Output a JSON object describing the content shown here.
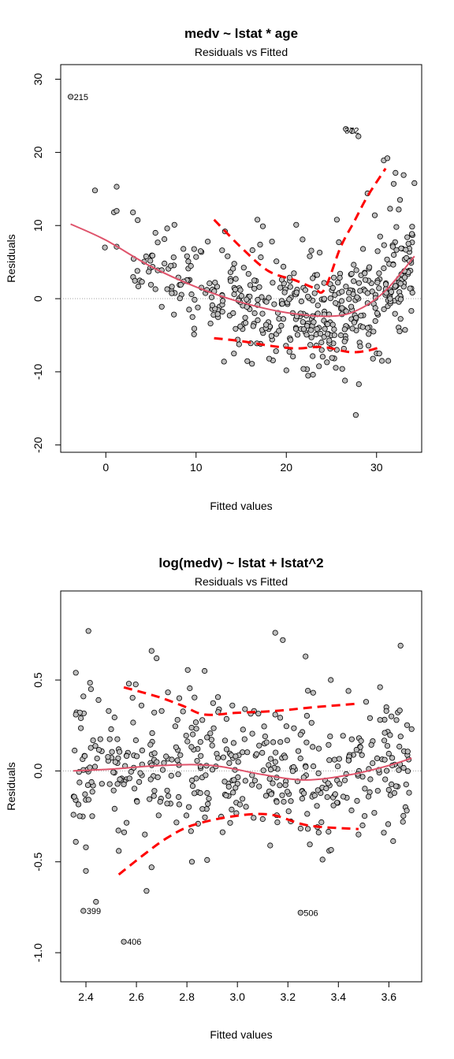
{
  "chart_data": [
    {
      "type": "scatter",
      "title": "medv ~ lstat * age",
      "subtitle": "Residuals vs Fitted",
      "xlabel": "Fitted values",
      "ylabel": "Residuals",
      "xlim": [
        -5,
        35
      ],
      "ylim": [
        -21,
        32
      ],
      "xticks": [
        0,
        10,
        20,
        30
      ],
      "yticks": [
        -20,
        -10,
        0,
        10,
        20,
        30
      ],
      "zero_line": true,
      "point_fill": "#bebebe",
      "point_stroke": "#000000",
      "smooth_color": "#df536b",
      "band_color": "#ff0000",
      "points": [
        [
          -3.9,
          27.6
        ],
        [
          -1.2,
          14.8
        ],
        [
          1.2,
          15.3
        ],
        [
          0.9,
          11.8
        ],
        [
          1.2,
          12.0
        ],
        [
          -0.1,
          7.0
        ],
        [
          1.2,
          7.1
        ],
        [
          3.5,
          3.8
        ],
        [
          4.0,
          2.3
        ],
        [
          5.5,
          9.0
        ],
        [
          6.8,
          9.6
        ],
        [
          7.6,
          10.1
        ],
        [
          8.6,
          6.8
        ],
        [
          5.5,
          1.3
        ],
        [
          6.2,
          3.9
        ],
        [
          7.2,
          4.5
        ],
        [
          9.0,
          5.8
        ],
        [
          10.0,
          5.7
        ],
        [
          10.5,
          6.5
        ],
        [
          6.8,
          1.3
        ],
        [
          6.2,
          -1.1
        ],
        [
          8.3,
          1.9
        ],
        [
          9.5,
          0.6
        ],
        [
          10.2,
          -1.2
        ],
        [
          10.6,
          1.5
        ],
        [
          9.6,
          -2.5
        ],
        [
          9.8,
          -4.1
        ],
        [
          11.2,
          1.2
        ],
        [
          11.8,
          -0.9
        ],
        [
          11.3,
          7.8
        ],
        [
          12.1,
          2.2
        ],
        [
          11.6,
          -3.4
        ],
        [
          12.4,
          -2.1
        ],
        [
          13.2,
          9.2
        ],
        [
          13.5,
          5.8
        ],
        [
          14.1,
          4.1
        ],
        [
          13.1,
          -8.6
        ],
        [
          14.2,
          -7.5
        ],
        [
          16.2,
          -8.9
        ],
        [
          16.8,
          10.8
        ],
        [
          17.4,
          9.9
        ],
        [
          17.1,
          7.4
        ],
        [
          18.9,
          5.1
        ],
        [
          21.8,
          8.1
        ],
        [
          21.1,
          10.1
        ],
        [
          25.6,
          10.8
        ],
        [
          29.0,
          14.4
        ],
        [
          30.8,
          18.9
        ],
        [
          31.2,
          19.2
        ],
        [
          32.1,
          17.2
        ],
        [
          33.0,
          16.9
        ],
        [
          34.2,
          15.8
        ],
        [
          31.5,
          12.3
        ],
        [
          32.6,
          13.5
        ],
        [
          33.4,
          8.4
        ],
        [
          33.1,
          3.8
        ],
        [
          26.6,
          23.2
        ],
        [
          27.3,
          22.9
        ],
        [
          28.0,
          22.2
        ],
        [
          26.5,
          -11.2
        ],
        [
          27.7,
          -15.9
        ],
        [
          26.2,
          -9.6
        ],
        [
          29.6,
          -8.2
        ],
        [
          30.3,
          -7.5
        ],
        [
          30.6,
          -8.5
        ],
        [
          31.3,
          -8.5
        ],
        [
          24.5,
          -8.7
        ],
        [
          21.9,
          -9.6
        ],
        [
          20.0,
          -9.8
        ],
        [
          18.1,
          -8.2
        ],
        [
          22.6,
          5.8
        ],
        [
          23.7,
          6.3
        ],
        [
          19.5,
          2.6
        ],
        [
          28.5,
          6.8
        ],
        [
          29.2,
          4.3
        ],
        [
          31.8,
          7.1
        ],
        [
          30.1,
          2.2
        ],
        [
          33.7,
          1.4
        ],
        [
          32.2,
          9.8
        ],
        [
          31.9,
          15.7
        ],
        [
          29.8,
          11.4
        ],
        [
          30.4,
          8.5
        ]
      ],
      "scatter_seed": 11,
      "scatter_count": 420,
      "smooth": [
        [
          -3.9,
          10.2
        ],
        [
          0,
          8.0
        ],
        [
          5,
          4.4
        ],
        [
          10,
          1.6
        ],
        [
          15,
          -0.5
        ],
        [
          20,
          -1.9
        ],
        [
          25,
          -2.4
        ],
        [
          28,
          -1.5
        ],
        [
          31,
          1.1
        ],
        [
          34.2,
          5.8
        ]
      ],
      "upper_band": [
        [
          12,
          10.8
        ],
        [
          15,
          7.0
        ],
        [
          18,
          3.8
        ],
        [
          21,
          2.5
        ],
        [
          23,
          1.5
        ],
        [
          24.2,
          1.2
        ],
        [
          26,
          7.0
        ],
        [
          27.5,
          10.5
        ],
        [
          29,
          14.0
        ],
        [
          31,
          17.8
        ]
      ],
      "lower_band": [
        [
          12,
          -5.4
        ],
        [
          15,
          -5.8
        ],
        [
          18,
          -6.4
        ],
        [
          21,
          -6.8
        ],
        [
          24,
          -6.6
        ],
        [
          27,
          -7.3
        ],
        [
          29,
          -7.1
        ],
        [
          30.5,
          -6.6
        ]
      ],
      "annotations": [
        {
          "label": "215",
          "x": -3.9,
          "y": 27.6
        },
        {
          "label": "372",
          "x": 26.1,
          "y": 23.0
        }
      ]
    },
    {
      "type": "scatter",
      "title": "log(medv) ~ lstat + lstat^2",
      "subtitle": "Residuals vs Fitted",
      "xlabel": "Fitted values",
      "ylabel": "Residuals",
      "xlim": [
        2.3,
        3.73
      ],
      "ylim": [
        -1.16,
        0.99
      ],
      "xticks": [
        2.4,
        2.6,
        2.8,
        3.0,
        3.2,
        3.4,
        3.6
      ],
      "yticks": [
        -1.0,
        -0.5,
        0.0,
        0.5
      ],
      "zero_line": true,
      "point_fill": "#bebebe",
      "point_stroke": "#000000",
      "smooth_color": "#df536b",
      "band_color": "#ff0000",
      "points": [
        [
          2.41,
          0.77
        ],
        [
          2.36,
          0.54
        ],
        [
          2.39,
          0.41
        ],
        [
          2.42,
          0.45
        ],
        [
          2.45,
          0.39
        ],
        [
          2.49,
          0.33
        ],
        [
          2.36,
          0.31
        ],
        [
          2.38,
          0.29
        ],
        [
          2.66,
          0.66
        ],
        [
          2.68,
          0.62
        ],
        [
          2.87,
          0.55
        ],
        [
          3.15,
          0.76
        ],
        [
          3.18,
          0.72
        ],
        [
          3.27,
          0.63
        ],
        [
          3.37,
          0.5
        ],
        [
          2.57,
          0.48
        ],
        [
          2.39,
          -0.77
        ],
        [
          2.44,
          -0.72
        ],
        [
          2.55,
          -0.94
        ],
        [
          2.4,
          -0.55
        ],
        [
          2.53,
          -0.44
        ],
        [
          2.64,
          -0.66
        ],
        [
          2.66,
          -0.53
        ],
        [
          2.82,
          -0.5
        ],
        [
          2.88,
          -0.49
        ],
        [
          3.25,
          -0.78
        ],
        [
          3.13,
          -0.41
        ],
        [
          2.36,
          -0.39
        ],
        [
          2.4,
          -0.42
        ],
        [
          3.48,
          -0.35
        ],
        [
          3.58,
          -0.34
        ],
        [
          3.68,
          -0.12
        ],
        [
          3.63,
          0.28
        ],
        [
          3.69,
          0.23
        ],
        [
          3.61,
          0.3
        ],
        [
          3.59,
          0.33
        ],
        [
          3.51,
          0.38
        ],
        [
          3.44,
          0.44
        ],
        [
          3.3,
          0.43
        ],
        [
          3.15,
          0.31
        ],
        [
          3.03,
          0.34
        ],
        [
          2.98,
          0.36
        ],
        [
          2.77,
          0.4
        ],
        [
          2.62,
          0.36
        ],
        [
          2.7,
          0.33
        ],
        [
          3.25,
          0.2
        ],
        [
          3.11,
          0.19
        ],
        [
          2.9,
          0.14
        ]
      ],
      "scatter_seed": 7,
      "scatter_count": 420,
      "smooth": [
        [
          2.35,
          0.0
        ],
        [
          2.5,
          0.01
        ],
        [
          2.7,
          0.03
        ],
        [
          2.9,
          0.03
        ],
        [
          3.1,
          -0.02
        ],
        [
          3.27,
          -0.05
        ],
        [
          3.45,
          -0.02
        ],
        [
          3.6,
          0.03
        ],
        [
          3.69,
          0.07
        ]
      ],
      "upper_band": [
        [
          2.55,
          0.46
        ],
        [
          2.68,
          0.41
        ],
        [
          2.78,
          0.36
        ],
        [
          2.87,
          0.31
        ],
        [
          3.0,
          0.32
        ],
        [
          3.15,
          0.33
        ],
        [
          3.3,
          0.35
        ],
        [
          3.48,
          0.37
        ]
      ],
      "lower_band": [
        [
          2.53,
          -0.57
        ],
        [
          2.63,
          -0.46
        ],
        [
          2.72,
          -0.37
        ],
        [
          2.82,
          -0.3
        ],
        [
          2.98,
          -0.25
        ],
        [
          3.13,
          -0.24
        ],
        [
          3.28,
          -0.3
        ],
        [
          3.48,
          -0.32
        ]
      ],
      "annotations": [
        {
          "label": "399",
          "x": 2.39,
          "y": -0.77
        },
        {
          "label": "406",
          "x": 2.55,
          "y": -0.94
        },
        {
          "label": "506",
          "x": 3.25,
          "y": -0.78
        }
      ]
    }
  ]
}
